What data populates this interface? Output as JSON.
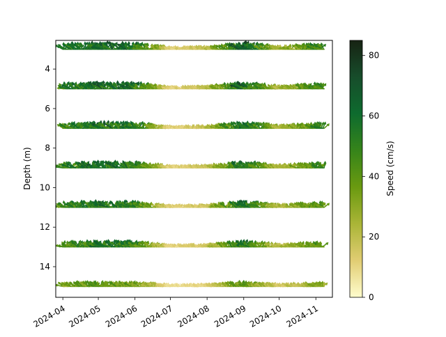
{
  "chart_data": {
    "type": "quiver",
    "title": "",
    "xlabel": "",
    "ylabel": "Depth (m)",
    "xlim": [
      "2024-03-26",
      "2024-11-15"
    ],
    "ylim": [
      15.55,
      2.55
    ],
    "y_inverted": true,
    "xticks": [
      "2024-04",
      "2024-05",
      "2024-06",
      "2024-07",
      "2024-08",
      "2024-09",
      "2024-10",
      "2024-11"
    ],
    "yticks": [
      4,
      6,
      8,
      10,
      12,
      14
    ],
    "time_range": [
      "2024-04-01",
      "2024-11-08"
    ],
    "depths": [
      3,
      5,
      7,
      9,
      11,
      13,
      15
    ],
    "speed_attenuation_with_depth": [
      1.0,
      0.97,
      0.94,
      0.92,
      0.9,
      0.86,
      0.62
    ],
    "speed_profile_by_month": [
      {
        "month": "2024-04",
        "speed": 50
      },
      {
        "month": "2024-05",
        "speed": 62
      },
      {
        "month": "2024-06",
        "speed": 58
      },
      {
        "month": "2024-07",
        "speed": 12
      },
      {
        "month": "2024-08",
        "speed": 18
      },
      {
        "month": "2024-09",
        "speed": 65
      },
      {
        "month": "2024-10",
        "speed": 22
      },
      {
        "month": "2024-11",
        "speed": 48
      }
    ],
    "colorbar": {
      "label": "Speed (cm/s)",
      "min": 0,
      "max": 85,
      "ticks": [
        0,
        20,
        40,
        60,
        80
      ],
      "colormap": "speed",
      "colors": [
        "#fffdcd",
        "#e1cd73",
        "#aab537",
        "#6a9a10",
        "#36841a",
        "#0e6b2e",
        "#174d2b",
        "#172313"
      ]
    }
  }
}
